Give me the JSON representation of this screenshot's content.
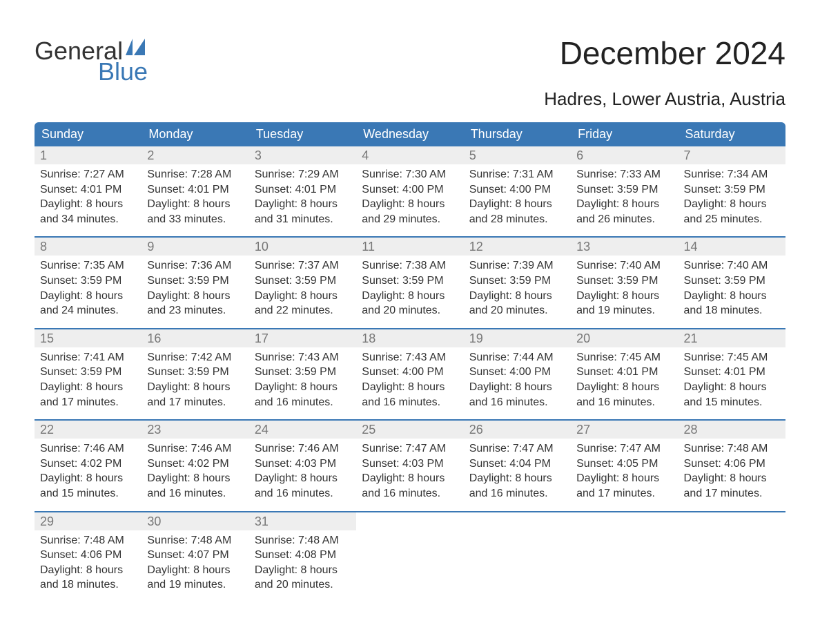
{
  "logo": {
    "textTop": "General",
    "textBottom": "Blue",
    "grayColor": "#333333",
    "blueColor": "#3a78b5"
  },
  "title": "December 2024",
  "subtitle": "Hadres, Lower Austria, Austria",
  "colors": {
    "headerBg": "#3a78b5",
    "headerText": "#ffffff",
    "dayNumBg": "#eeeeee",
    "dayNumText": "#777777",
    "bodyText": "#333333",
    "weekBorder": "#3a78b5",
    "pageBg": "#ffffff"
  },
  "fonts": {
    "title_pt": 46,
    "subtitle_pt": 26,
    "header_pt": 18,
    "daynum_pt": 18,
    "body_pt": 16,
    "logo_pt": 36
  },
  "dayHeaders": [
    "Sunday",
    "Monday",
    "Tuesday",
    "Wednesday",
    "Thursday",
    "Friday",
    "Saturday"
  ],
  "weeks": [
    [
      {
        "n": "1",
        "sr": "Sunrise: 7:27 AM",
        "ss": "Sunset: 4:01 PM",
        "d1": "Daylight: 8 hours",
        "d2": "and 34 minutes."
      },
      {
        "n": "2",
        "sr": "Sunrise: 7:28 AM",
        "ss": "Sunset: 4:01 PM",
        "d1": "Daylight: 8 hours",
        "d2": "and 33 minutes."
      },
      {
        "n": "3",
        "sr": "Sunrise: 7:29 AM",
        "ss": "Sunset: 4:01 PM",
        "d1": "Daylight: 8 hours",
        "d2": "and 31 minutes."
      },
      {
        "n": "4",
        "sr": "Sunrise: 7:30 AM",
        "ss": "Sunset: 4:00 PM",
        "d1": "Daylight: 8 hours",
        "d2": "and 29 minutes."
      },
      {
        "n": "5",
        "sr": "Sunrise: 7:31 AM",
        "ss": "Sunset: 4:00 PM",
        "d1": "Daylight: 8 hours",
        "d2": "and 28 minutes."
      },
      {
        "n": "6",
        "sr": "Sunrise: 7:33 AM",
        "ss": "Sunset: 3:59 PM",
        "d1": "Daylight: 8 hours",
        "d2": "and 26 minutes."
      },
      {
        "n": "7",
        "sr": "Sunrise: 7:34 AM",
        "ss": "Sunset: 3:59 PM",
        "d1": "Daylight: 8 hours",
        "d2": "and 25 minutes."
      }
    ],
    [
      {
        "n": "8",
        "sr": "Sunrise: 7:35 AM",
        "ss": "Sunset: 3:59 PM",
        "d1": "Daylight: 8 hours",
        "d2": "and 24 minutes."
      },
      {
        "n": "9",
        "sr": "Sunrise: 7:36 AM",
        "ss": "Sunset: 3:59 PM",
        "d1": "Daylight: 8 hours",
        "d2": "and 23 minutes."
      },
      {
        "n": "10",
        "sr": "Sunrise: 7:37 AM",
        "ss": "Sunset: 3:59 PM",
        "d1": "Daylight: 8 hours",
        "d2": "and 22 minutes."
      },
      {
        "n": "11",
        "sr": "Sunrise: 7:38 AM",
        "ss": "Sunset: 3:59 PM",
        "d1": "Daylight: 8 hours",
        "d2": "and 20 minutes."
      },
      {
        "n": "12",
        "sr": "Sunrise: 7:39 AM",
        "ss": "Sunset: 3:59 PM",
        "d1": "Daylight: 8 hours",
        "d2": "and 20 minutes."
      },
      {
        "n": "13",
        "sr": "Sunrise: 7:40 AM",
        "ss": "Sunset: 3:59 PM",
        "d1": "Daylight: 8 hours",
        "d2": "and 19 minutes."
      },
      {
        "n": "14",
        "sr": "Sunrise: 7:40 AM",
        "ss": "Sunset: 3:59 PM",
        "d1": "Daylight: 8 hours",
        "d2": "and 18 minutes."
      }
    ],
    [
      {
        "n": "15",
        "sr": "Sunrise: 7:41 AM",
        "ss": "Sunset: 3:59 PM",
        "d1": "Daylight: 8 hours",
        "d2": "and 17 minutes."
      },
      {
        "n": "16",
        "sr": "Sunrise: 7:42 AM",
        "ss": "Sunset: 3:59 PM",
        "d1": "Daylight: 8 hours",
        "d2": "and 17 minutes."
      },
      {
        "n": "17",
        "sr": "Sunrise: 7:43 AM",
        "ss": "Sunset: 3:59 PM",
        "d1": "Daylight: 8 hours",
        "d2": "and 16 minutes."
      },
      {
        "n": "18",
        "sr": "Sunrise: 7:43 AM",
        "ss": "Sunset: 4:00 PM",
        "d1": "Daylight: 8 hours",
        "d2": "and 16 minutes."
      },
      {
        "n": "19",
        "sr": "Sunrise: 7:44 AM",
        "ss": "Sunset: 4:00 PM",
        "d1": "Daylight: 8 hours",
        "d2": "and 16 minutes."
      },
      {
        "n": "20",
        "sr": "Sunrise: 7:45 AM",
        "ss": "Sunset: 4:01 PM",
        "d1": "Daylight: 8 hours",
        "d2": "and 16 minutes."
      },
      {
        "n": "21",
        "sr": "Sunrise: 7:45 AM",
        "ss": "Sunset: 4:01 PM",
        "d1": "Daylight: 8 hours",
        "d2": "and 15 minutes."
      }
    ],
    [
      {
        "n": "22",
        "sr": "Sunrise: 7:46 AM",
        "ss": "Sunset: 4:02 PM",
        "d1": "Daylight: 8 hours",
        "d2": "and 15 minutes."
      },
      {
        "n": "23",
        "sr": "Sunrise: 7:46 AM",
        "ss": "Sunset: 4:02 PM",
        "d1": "Daylight: 8 hours",
        "d2": "and 16 minutes."
      },
      {
        "n": "24",
        "sr": "Sunrise: 7:46 AM",
        "ss": "Sunset: 4:03 PM",
        "d1": "Daylight: 8 hours",
        "d2": "and 16 minutes."
      },
      {
        "n": "25",
        "sr": "Sunrise: 7:47 AM",
        "ss": "Sunset: 4:03 PM",
        "d1": "Daylight: 8 hours",
        "d2": "and 16 minutes."
      },
      {
        "n": "26",
        "sr": "Sunrise: 7:47 AM",
        "ss": "Sunset: 4:04 PM",
        "d1": "Daylight: 8 hours",
        "d2": "and 16 minutes."
      },
      {
        "n": "27",
        "sr": "Sunrise: 7:47 AM",
        "ss": "Sunset: 4:05 PM",
        "d1": "Daylight: 8 hours",
        "d2": "and 17 minutes."
      },
      {
        "n": "28",
        "sr": "Sunrise: 7:48 AM",
        "ss": "Sunset: 4:06 PM",
        "d1": "Daylight: 8 hours",
        "d2": "and 17 minutes."
      }
    ],
    [
      {
        "n": "29",
        "sr": "Sunrise: 7:48 AM",
        "ss": "Sunset: 4:06 PM",
        "d1": "Daylight: 8 hours",
        "d2": "and 18 minutes."
      },
      {
        "n": "30",
        "sr": "Sunrise: 7:48 AM",
        "ss": "Sunset: 4:07 PM",
        "d1": "Daylight: 8 hours",
        "d2": "and 19 minutes."
      },
      {
        "n": "31",
        "sr": "Sunrise: 7:48 AM",
        "ss": "Sunset: 4:08 PM",
        "d1": "Daylight: 8 hours",
        "d2": "and 20 minutes."
      },
      {
        "empty": true
      },
      {
        "empty": true
      },
      {
        "empty": true
      },
      {
        "empty": true
      }
    ]
  ]
}
